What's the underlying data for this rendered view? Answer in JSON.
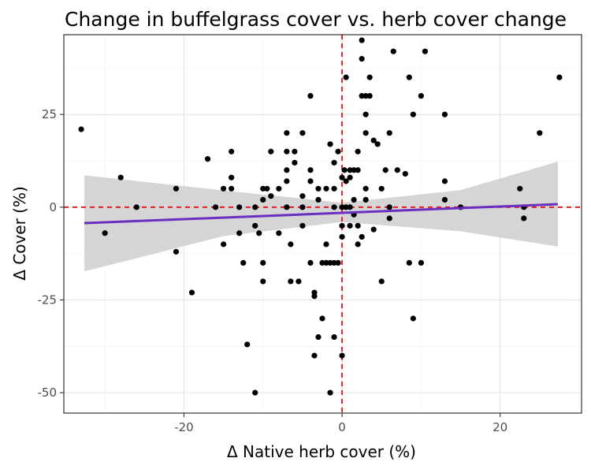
{
  "chart_data": {
    "type": "scatter",
    "title": "Change in buffelgrass cover vs. herb cover change",
    "xlabel": "Δ Native herb cover (%)",
    "ylabel": "Δ Cover (%)",
    "xlim": [
      -35.2,
      30.3
    ],
    "ylim": [
      -55.5,
      46.5
    ],
    "x_ticks": [
      -20,
      0,
      20
    ],
    "y_ticks": [
      -50,
      -25,
      0,
      25
    ],
    "x_tick_labels": [
      "-20",
      "0",
      "20"
    ],
    "y_tick_labels": [
      "-50",
      "-25",
      "0",
      "25"
    ],
    "grid": true,
    "reference_lines": [
      {
        "axis": "x",
        "value": 0,
        "color": "#e8101a",
        "style": "dashed"
      },
      {
        "axis": "y",
        "value": 0,
        "color": "#e8101a",
        "style": "dashed"
      }
    ],
    "trend": {
      "x_start": -32.6,
      "x_end": 27.3,
      "y_start": -4.3,
      "y_end": 0.8,
      "color": "#6a2fc0",
      "confidence_band": [
        {
          "x": -32.6,
          "lower": -17.3,
          "upper": 8.6
        },
        {
          "x": -15,
          "lower": -7.8,
          "upper": 4.5
        },
        {
          "x": 0,
          "lower": -4.0,
          "upper": 1.2
        },
        {
          "x": 15,
          "lower": -6.5,
          "upper": 4.6
        },
        {
          "x": 27.3,
          "lower": -10.6,
          "upper": 12.3
        }
      ],
      "band_color": "#d3d3d3"
    },
    "points": [
      {
        "x": -33,
        "y": 21
      },
      {
        "x": -30,
        "y": -7
      },
      {
        "x": -28,
        "y": 8
      },
      {
        "x": -26,
        "y": 0
      },
      {
        "x": -21,
        "y": 5
      },
      {
        "x": -21,
        "y": -12
      },
      {
        "x": -19,
        "y": -23
      },
      {
        "x": -17,
        "y": 13
      },
      {
        "x": -16,
        "y": 0
      },
      {
        "x": -15,
        "y": 5
      },
      {
        "x": -15,
        "y": -10
      },
      {
        "x": -14,
        "y": 15
      },
      {
        "x": -14,
        "y": 8
      },
      {
        "x": -14,
        "y": 5
      },
      {
        "x": -13,
        "y": 0
      },
      {
        "x": -13,
        "y": -7
      },
      {
        "x": -12.5,
        "y": -15
      },
      {
        "x": -12,
        "y": -37
      },
      {
        "x": -11,
        "y": -5
      },
      {
        "x": -11,
        "y": 0
      },
      {
        "x": -10.5,
        "y": -7
      },
      {
        "x": -10,
        "y": 5
      },
      {
        "x": -10,
        "y": 2
      },
      {
        "x": -11,
        "y": -50
      },
      {
        "x": -9.5,
        "y": 5
      },
      {
        "x": -10,
        "y": -15
      },
      {
        "x": -10,
        "y": -20
      },
      {
        "x": -9,
        "y": 15
      },
      {
        "x": -9,
        "y": 3
      },
      {
        "x": -8,
        "y": 5
      },
      {
        "x": -8,
        "y": -7
      },
      {
        "x": -7,
        "y": 20
      },
      {
        "x": -7,
        "y": 15
      },
      {
        "x": -7,
        "y": 10
      },
      {
        "x": -7,
        "y": 7
      },
      {
        "x": -7,
        "y": 0
      },
      {
        "x": -6.5,
        "y": -10
      },
      {
        "x": -6,
        "y": 15
      },
      {
        "x": -6,
        "y": 12
      },
      {
        "x": -6.5,
        "y": -20
      },
      {
        "x": -5,
        "y": 20
      },
      {
        "x": -5,
        "y": 3
      },
      {
        "x": -5,
        "y": 0
      },
      {
        "x": -5,
        "y": -5
      },
      {
        "x": -5.5,
        "y": -20
      },
      {
        "x": -4,
        "y": 30
      },
      {
        "x": -4,
        "y": 10
      },
      {
        "x": -4,
        "y": 7
      },
      {
        "x": -4,
        "y": -15
      },
      {
        "x": -3.5,
        "y": -23
      },
      {
        "x": -3.5,
        "y": -24
      },
      {
        "x": -3.5,
        "y": -40
      },
      {
        "x": -3,
        "y": 5
      },
      {
        "x": -3,
        "y": 2
      },
      {
        "x": -3,
        "y": -35
      },
      {
        "x": -2.5,
        "y": -15
      },
      {
        "x": -2.5,
        "y": -30
      },
      {
        "x": -2,
        "y": 5
      },
      {
        "x": -2,
        "y": -15
      },
      {
        "x": -2,
        "y": -10
      },
      {
        "x": -1.5,
        "y": 17
      },
      {
        "x": -1.5,
        "y": -15
      },
      {
        "x": -1.5,
        "y": -50
      },
      {
        "x": -1,
        "y": 12
      },
      {
        "x": -1,
        "y": 5
      },
      {
        "x": -1,
        "y": 0
      },
      {
        "x": -1,
        "y": -15
      },
      {
        "x": -1,
        "y": -35
      },
      {
        "x": -0.5,
        "y": 15
      },
      {
        "x": -0.5,
        "y": -15
      },
      {
        "x": 0,
        "y": 8
      },
      {
        "x": 0,
        "y": 0
      },
      {
        "x": 0,
        "y": -5
      },
      {
        "x": 0,
        "y": -8
      },
      {
        "x": 0,
        "y": -40
      },
      {
        "x": 0.3,
        "y": 10
      },
      {
        "x": 0.5,
        "y": 35
      },
      {
        "x": 0.5,
        "y": 7
      },
      {
        "x": 0.5,
        "y": 0
      },
      {
        "x": 1,
        "y": 10
      },
      {
        "x": 1,
        "y": 8
      },
      {
        "x": 1,
        "y": 0
      },
      {
        "x": 1,
        "y": -5
      },
      {
        "x": 1.5,
        "y": 10
      },
      {
        "x": 1.5,
        "y": 2
      },
      {
        "x": 1.5,
        "y": -2
      },
      {
        "x": 2,
        "y": 15
      },
      {
        "x": 2,
        "y": 10
      },
      {
        "x": 2,
        "y": -5
      },
      {
        "x": 2,
        "y": -10
      },
      {
        "x": 2.5,
        "y": 45
      },
      {
        "x": 2.5,
        "y": 40
      },
      {
        "x": 2.5,
        "y": 30
      },
      {
        "x": 2.5,
        "y": -8
      },
      {
        "x": 3,
        "y": 20
      },
      {
        "x": 3,
        "y": 30
      },
      {
        "x": 3,
        "y": 25
      },
      {
        "x": 3,
        "y": 5
      },
      {
        "x": 3,
        "y": 2
      },
      {
        "x": 3.5,
        "y": 35
      },
      {
        "x": 3.5,
        "y": 30
      },
      {
        "x": 4,
        "y": 18
      },
      {
        "x": 4,
        "y": -6
      },
      {
        "x": 4.5,
        "y": 17
      },
      {
        "x": 5,
        "y": 5
      },
      {
        "x": 5,
        "y": -20
      },
      {
        "x": 5.5,
        "y": 10
      },
      {
        "x": 6,
        "y": 20
      },
      {
        "x": 6,
        "y": 0
      },
      {
        "x": 6,
        "y": -3
      },
      {
        "x": 6.5,
        "y": 42
      },
      {
        "x": 7,
        "y": 10
      },
      {
        "x": 8,
        "y": 9
      },
      {
        "x": 8.5,
        "y": 35
      },
      {
        "x": 8.5,
        "y": -15
      },
      {
        "x": 9,
        "y": 25
      },
      {
        "x": 9,
        "y": -30
      },
      {
        "x": 10,
        "y": 30
      },
      {
        "x": 10,
        "y": -15
      },
      {
        "x": 10.5,
        "y": 42
      },
      {
        "x": 13,
        "y": 25
      },
      {
        "x": 13,
        "y": 7
      },
      {
        "x": 13,
        "y": 2
      },
      {
        "x": 15,
        "y": 0
      },
      {
        "x": 22.5,
        "y": 5
      },
      {
        "x": 23,
        "y": 0
      },
      {
        "x": 23,
        "y": -3
      },
      {
        "x": 25,
        "y": 20
      },
      {
        "x": 27.5,
        "y": 35
      }
    ]
  }
}
